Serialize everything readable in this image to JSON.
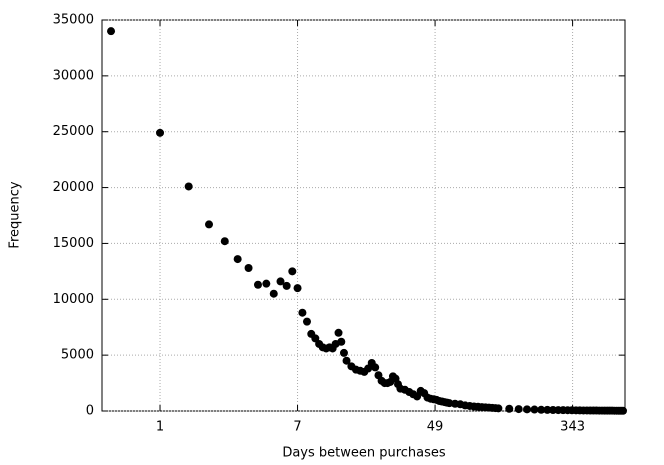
{
  "chart_data": {
    "type": "scatter",
    "xlabel": "Days between purchases",
    "ylabel": "Frequency",
    "xscale": "log",
    "grid": true,
    "color": "#000000",
    "xlim": [
      0.44,
      720
    ],
    "xticks": [
      1,
      7,
      49,
      343
    ],
    "ylim": [
      0,
      35000
    ],
    "yticks": [
      0,
      5000,
      10000,
      15000,
      20000,
      25000,
      30000,
      35000
    ],
    "x": [
      0.5,
      1,
      1.5,
      2,
      2.5,
      3,
      3.5,
      4,
      4.5,
      5,
      5.5,
      6,
      6.5,
      7,
      7.5,
      8,
      8.5,
      9,
      9.5,
      10,
      10.5,
      11,
      11.5,
      12,
      12.5,
      13,
      13.5,
      14,
      15,
      16,
      17,
      18,
      19,
      20,
      21,
      22,
      23,
      24,
      25,
      26,
      27,
      28,
      29,
      30,
      32,
      34,
      36,
      38,
      40,
      42,
      44,
      46,
      48,
      50,
      52,
      54,
      56,
      58,
      60,
      65,
      70,
      75,
      80,
      85,
      90,
      95,
      100,
      105,
      110,
      115,
      120,
      140,
      160,
      180,
      200,
      220,
      240,
      260,
      280,
      300,
      320,
      340,
      360,
      380,
      400,
      420,
      440,
      460,
      480,
      500,
      520,
      540,
      560,
      580,
      600,
      620,
      640,
      660,
      680,
      700
    ],
    "values": [
      34000,
      24900,
      20100,
      16700,
      15200,
      13600,
      12800,
      11300,
      11400,
      10500,
      11600,
      11200,
      12500,
      11000,
      8800,
      8000,
      6900,
      6500,
      6000,
      5700,
      5600,
      5700,
      5600,
      6000,
      7000,
      6200,
      5200,
      4500,
      4000,
      3700,
      3600,
      3500,
      3800,
      4300,
      3900,
      3200,
      2700,
      2500,
      2500,
      2600,
      3100,
      2900,
      2400,
      2000,
      1900,
      1700,
      1500,
      1300,
      1800,
      1600,
      1200,
      1100,
      1050,
      1000,
      900,
      850,
      800,
      750,
      700,
      650,
      600,
      500,
      450,
      400,
      380,
      350,
      320,
      300,
      280,
      260,
      240,
      200,
      170,
      150,
      130,
      110,
      100,
      90,
      80,
      75,
      70,
      65,
      60,
      55,
      50,
      48,
      45,
      42,
      40,
      38,
      36,
      34,
      32,
      30,
      28,
      26,
      24,
      22,
      20,
      18
    ]
  }
}
